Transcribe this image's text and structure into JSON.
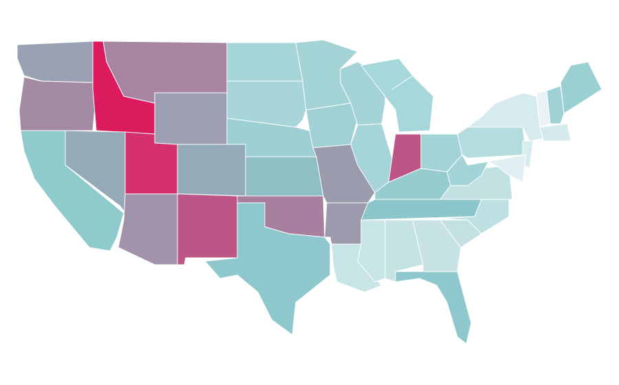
{
  "map": {
    "background": "#ffffff",
    "border_color": "#ffffff",
    "regions": [
      {
        "color": "#9aa1b5"
      },
      {
        "color": "#a58aa3"
      },
      {
        "color": "#dc1a5e"
      },
      {
        "color": "#a7849f"
      },
      {
        "color": "#9d9db3"
      },
      {
        "color": "#8fcbcc"
      },
      {
        "color": "#94aab6"
      },
      {
        "color": "#d4306b"
      },
      {
        "color": "#a093ab"
      },
      {
        "color": "#93abb8"
      },
      {
        "color": "#bb5686"
      },
      {
        "color": "#a7d6d8"
      },
      {
        "color": "#a7d5d9"
      },
      {
        "color": "#9dd0d2"
      },
      {
        "color": "#8fbfc5"
      },
      {
        "color": "#a97f9f"
      },
      {
        "color": "#8ec8cc"
      },
      {
        "color": "#a4d3d6"
      },
      {
        "color": "#9fd0d3"
      },
      {
        "color": "#9b9bae"
      },
      {
        "color": "#9e9aae"
      },
      {
        "color": "#c7e4e6"
      },
      {
        "color": "#a3d3d6"
      },
      {
        "color": "#a5d5d8"
      },
      {
        "color": "#a6d7da"
      },
      {
        "color": "#bc5486"
      },
      {
        "color": "#a2d3d6"
      },
      {
        "color": "#97cccf"
      },
      {
        "color": "#8cc6ca"
      },
      {
        "color": "#c8e5e7"
      },
      {
        "color": "#c5e2e4"
      },
      {
        "color": "#c7e3e5"
      },
      {
        "color": "#8ec8cc"
      },
      {
        "color": "#c3e1e3"
      },
      {
        "color": "#bde0e2"
      },
      {
        "color": "#c2e1e3"
      },
      {
        "color": "#a3d3d6"
      },
      {
        "color": "#b4dcdf"
      },
      {
        "color": "#d5ebee"
      },
      {
        "color": "#d6ecee"
      },
      {
        "color": "#e0f0f2"
      },
      {
        "color": "#e9f3f5"
      },
      {
        "color": "#9fd0d4"
      },
      {
        "color": "#9bd0d3"
      },
      {
        "color": "#d4eaec"
      }
    ]
  }
}
